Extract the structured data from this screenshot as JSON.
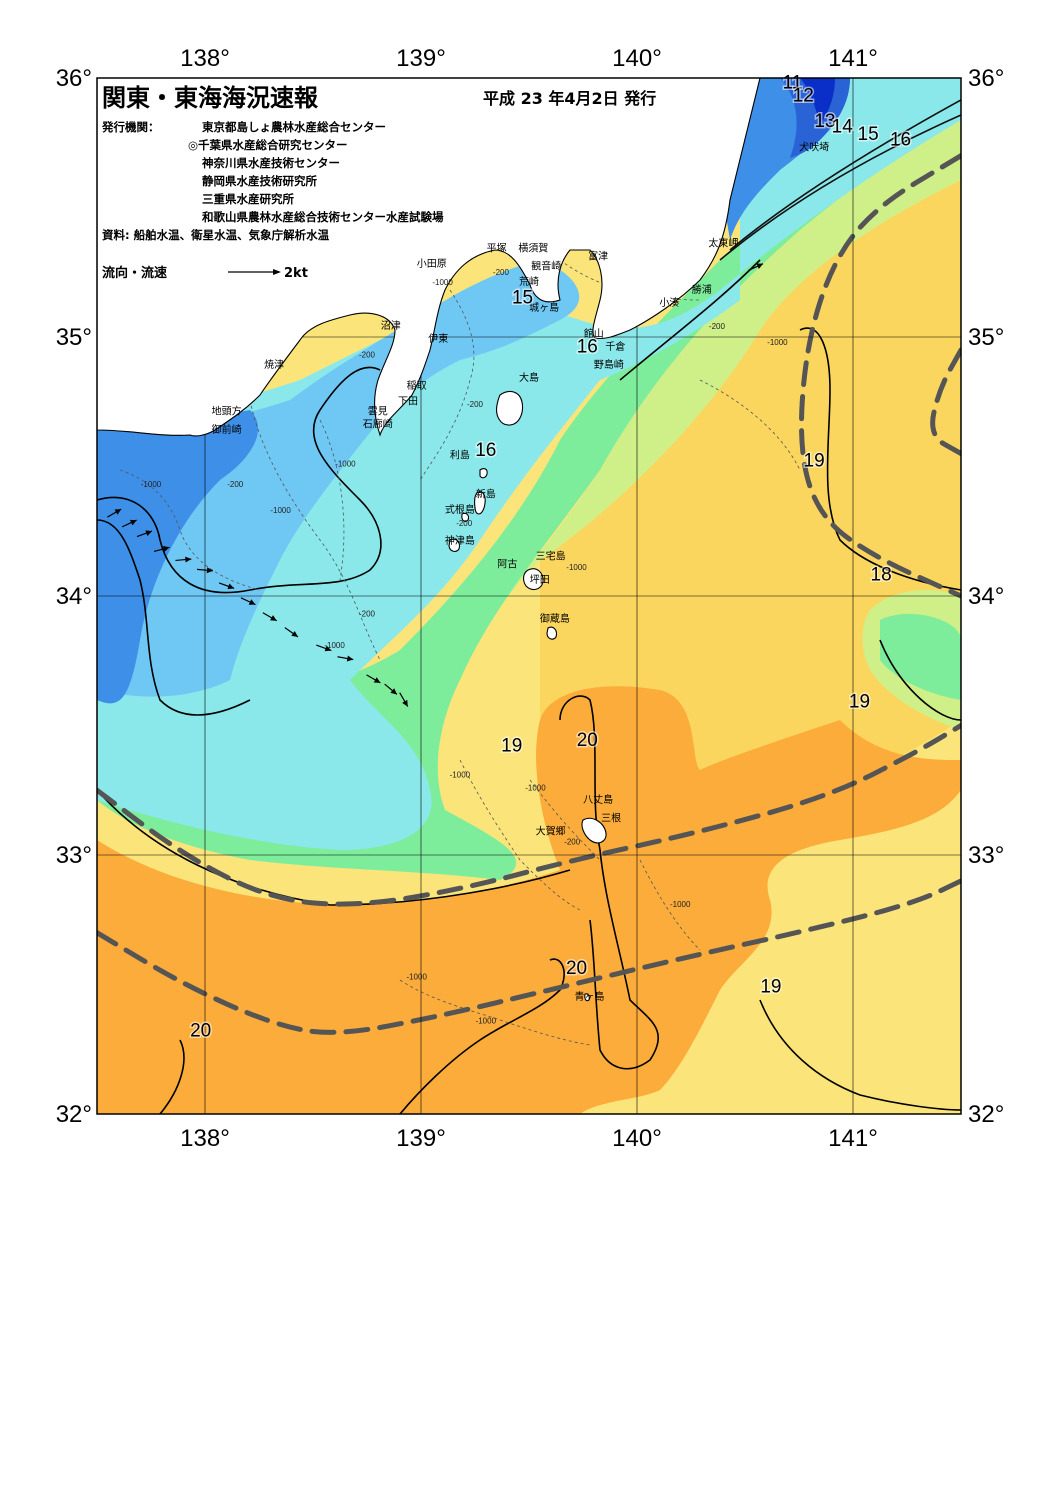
{
  "header": {
    "title": "関東・東海海況速報",
    "issued": "平成 23 年4月2日 発行"
  },
  "organizations": {
    "label": "発行機関：",
    "items": [
      "東京都島しょ農林水産総合センター",
      "◎千葉県水産総合研究センター",
      "神奈川県水産技術センター",
      "静岡県水産技術研究所",
      "三重県水産研究所",
      "和歌山県農林水産総合技術センター水産試験場"
    ]
  },
  "source": "資料: 船舶水温、衛星水温、気象庁解析水温",
  "current_legend": {
    "label": "流向・流速",
    "scale": "2kt"
  },
  "axes": {
    "lon_labels": [
      "138°",
      "139°",
      "140°",
      "141°"
    ],
    "lat_labels": [
      "36°",
      "35°",
      "34°",
      "33°",
      "32°"
    ],
    "lon_range": [
      137.5,
      141.5
    ],
    "lat_range": [
      32,
      36
    ]
  },
  "colors": {
    "sea_14": "#3e8fe8",
    "sea_15": "#6fc8f4",
    "sea_16": "#8ae8ea",
    "sea_17": "#7ded9c",
    "sea_18": "#cfef88",
    "sea_19a": "#fbe57a",
    "sea_19b": "#fbd65e",
    "sea_20": "#fbac3a",
    "land": "#ffffff",
    "kuroshio_axis": "#555555"
  },
  "places": [
    {
      "name": "小田原",
      "lon": 139.05,
      "lat": 35.27
    },
    {
      "name": "平塚",
      "lon": 139.35,
      "lat": 35.33
    },
    {
      "name": "横須賀",
      "lon": 139.52,
      "lat": 35.33
    },
    {
      "name": "観音崎",
      "lon": 139.58,
      "lat": 35.26
    },
    {
      "name": "荒崎",
      "lon": 139.5,
      "lat": 35.2
    },
    {
      "name": "城ヶ島",
      "lon": 139.57,
      "lat": 35.1
    },
    {
      "name": "富津",
      "lon": 139.82,
      "lat": 35.3
    },
    {
      "name": "太東岬",
      "lon": 140.4,
      "lat": 35.35
    },
    {
      "name": "勝浦",
      "lon": 140.3,
      "lat": 35.17
    },
    {
      "name": "小湊",
      "lon": 140.15,
      "lat": 35.12
    },
    {
      "name": "館山",
      "lon": 139.8,
      "lat": 35.0
    },
    {
      "name": "千倉",
      "lon": 139.9,
      "lat": 34.95
    },
    {
      "name": "野島崎",
      "lon": 139.87,
      "lat": 34.88
    },
    {
      "name": "犬吠埼",
      "lon": 140.82,
      "lat": 35.72
    },
    {
      "name": "沼津",
      "lon": 138.86,
      "lat": 35.03
    },
    {
      "name": "焼津",
      "lon": 138.32,
      "lat": 34.88
    },
    {
      "name": "伊東",
      "lon": 139.08,
      "lat": 34.98
    },
    {
      "name": "稲取",
      "lon": 138.98,
      "lat": 34.8
    },
    {
      "name": "下田",
      "lon": 138.94,
      "lat": 34.74
    },
    {
      "name": "雲見",
      "lon": 138.8,
      "lat": 34.7
    },
    {
      "name": "石廊崎",
      "lon": 138.8,
      "lat": 34.65
    },
    {
      "name": "地頭方",
      "lon": 138.1,
      "lat": 34.7
    },
    {
      "name": "御前崎",
      "lon": 138.1,
      "lat": 34.63
    },
    {
      "name": "大島",
      "lon": 139.5,
      "lat": 34.83
    },
    {
      "name": "利島",
      "lon": 139.18,
      "lat": 34.53
    },
    {
      "name": "新島",
      "lon": 139.3,
      "lat": 34.38
    },
    {
      "name": "式根島",
      "lon": 139.18,
      "lat": 34.32
    },
    {
      "name": "神津島",
      "lon": 139.18,
      "lat": 34.2
    },
    {
      "name": "三宅島",
      "lon": 139.6,
      "lat": 34.14
    },
    {
      "name": "阿古",
      "lon": 139.4,
      "lat": 34.11
    },
    {
      "name": "坪田",
      "lon": 139.55,
      "lat": 34.05
    },
    {
      "name": "御蔵島",
      "lon": 139.62,
      "lat": 33.9
    },
    {
      "name": "八丈島",
      "lon": 139.82,
      "lat": 33.2
    },
    {
      "name": "三根",
      "lon": 139.88,
      "lat": 33.13
    },
    {
      "name": "大賀郷",
      "lon": 139.6,
      "lat": 33.08
    },
    {
      "name": "青ヶ島",
      "lon": 139.78,
      "lat": 32.44
    }
  ],
  "isotherm_labels": [
    {
      "text": "11",
      "lon": 140.72,
      "lat": 35.96
    },
    {
      "text": "12",
      "lon": 140.77,
      "lat": 35.91
    },
    {
      "text": "13",
      "lon": 140.87,
      "lat": 35.81
    },
    {
      "text": "14",
      "lon": 140.95,
      "lat": 35.79
    },
    {
      "text": "15",
      "lon": 141.07,
      "lat": 35.76
    },
    {
      "text": "16",
      "lon": 141.22,
      "lat": 35.74
    },
    {
      "text": "15",
      "lon": 139.47,
      "lat": 35.13
    },
    {
      "text": "16",
      "lon": 139.77,
      "lat": 34.94
    },
    {
      "text": "16",
      "lon": 139.3,
      "lat": 34.54
    },
    {
      "text": "19",
      "lon": 140.82,
      "lat": 34.5
    },
    {
      "text": "18",
      "lon": 141.13,
      "lat": 34.06
    },
    {
      "text": "19",
      "lon": 141.03,
      "lat": 33.57
    },
    {
      "text": "19",
      "lon": 139.42,
      "lat": 33.4
    },
    {
      "text": "20",
      "lon": 139.77,
      "lat": 33.42
    },
    {
      "text": "20",
      "lon": 139.72,
      "lat": 32.54
    },
    {
      "text": "19",
      "lon": 140.62,
      "lat": 32.47
    },
    {
      "text": "20",
      "lon": 137.98,
      "lat": 32.3
    }
  ],
  "depth_labels": [
    {
      "text": "-200",
      "lon": 139.37,
      "lat": 35.24
    },
    {
      "text": "-1000",
      "lon": 139.1,
      "lat": 35.2
    },
    {
      "text": "-200",
      "lon": 140.37,
      "lat": 35.03
    },
    {
      "text": "-1000",
      "lon": 140.65,
      "lat": 34.97
    },
    {
      "text": "-200",
      "lon": 138.75,
      "lat": 34.92
    },
    {
      "text": "-200",
      "lon": 139.25,
      "lat": 34.73
    },
    {
      "text": "-1000",
      "lon": 138.65,
      "lat": 34.5
    },
    {
      "text": "-200",
      "lon": 138.14,
      "lat": 34.42
    },
    {
      "text": "-1000",
      "lon": 137.75,
      "lat": 34.42
    },
    {
      "text": "-1000",
      "lon": 138.35,
      "lat": 34.32
    },
    {
      "text": "-200",
      "lon": 139.2,
      "lat": 34.27
    },
    {
      "text": "-1000",
      "lon": 139.72,
      "lat": 34.1
    },
    {
      "text": "-200",
      "lon": 138.75,
      "lat": 33.92
    },
    {
      "text": "-1000",
      "lon": 138.6,
      "lat": 33.8
    },
    {
      "text": "-1000",
      "lon": 139.18,
      "lat": 33.3
    },
    {
      "text": "-1000",
      "lon": 139.53,
      "lat": 33.25
    },
    {
      "text": "-200",
      "lon": 139.7,
      "lat": 33.04
    },
    {
      "text": "-1000",
      "lon": 140.2,
      "lat": 32.8
    },
    {
      "text": "-1000",
      "lon": 138.98,
      "lat": 32.52
    },
    {
      "text": "-1000",
      "lon": 139.3,
      "lat": 32.35
    }
  ],
  "current_arrows": [
    {
      "lon": 137.58,
      "lat": 34.32,
      "dir": 60
    },
    {
      "lon": 137.65,
      "lat": 34.28,
      "dir": 65
    },
    {
      "lon": 137.72,
      "lat": 34.24,
      "dir": 70
    },
    {
      "lon": 137.8,
      "lat": 34.18,
      "dir": 75
    },
    {
      "lon": 137.9,
      "lat": 34.14,
      "dir": 85
    },
    {
      "lon": 138.0,
      "lat": 34.1,
      "dir": 95
    },
    {
      "lon": 138.1,
      "lat": 34.04,
      "dir": 110
    },
    {
      "lon": 138.2,
      "lat": 33.98,
      "dir": 115
    },
    {
      "lon": 138.3,
      "lat": 33.92,
      "dir": 120
    },
    {
      "lon": 138.4,
      "lat": 33.86,
      "dir": 125
    },
    {
      "lon": 138.55,
      "lat": 33.8,
      "dir": 110
    },
    {
      "lon": 138.65,
      "lat": 33.76,
      "dir": 100
    },
    {
      "lon": 138.78,
      "lat": 33.68,
      "dir": 120
    },
    {
      "lon": 138.86,
      "lat": 33.64,
      "dir": 130
    },
    {
      "lon": 138.92,
      "lat": 33.6,
      "dir": 150
    },
    {
      "lon": 140.55,
      "lat": 35.27,
      "dir": 65
    }
  ],
  "kuroshio_paths": [
    [
      [
        137.5,
        33.25
      ],
      [
        137.9,
        33.0
      ],
      [
        138.3,
        32.83
      ],
      [
        138.7,
        32.8
      ],
      [
        139.2,
        32.87
      ],
      [
        139.7,
        32.98
      ],
      [
        140.3,
        33.09
      ],
      [
        140.9,
        33.23
      ],
      [
        141.3,
        33.4
      ],
      [
        141.5,
        33.5
      ]
    ],
    [
      [
        137.5,
        32.7
      ],
      [
        137.9,
        32.5
      ],
      [
        138.3,
        32.35
      ],
      [
        138.6,
        32.3
      ],
      [
        139.1,
        32.38
      ],
      [
        139.6,
        32.48
      ],
      [
        140.2,
        32.6
      ],
      [
        140.9,
        32.73
      ],
      [
        141.3,
        32.82
      ],
      [
        141.5,
        32.9
      ]
    ],
    [
      [
        141.5,
        35.7
      ],
      [
        141.1,
        35.5
      ],
      [
        140.9,
        35.28
      ],
      [
        140.78,
        34.95
      ],
      [
        140.75,
        34.55
      ],
      [
        140.85,
        34.3
      ],
      [
        141.1,
        34.15
      ],
      [
        141.5,
        34.0
      ]
    ],
    [
      [
        141.5,
        34.95
      ],
      [
        141.4,
        34.8
      ],
      [
        141.35,
        34.62
      ],
      [
        141.5,
        34.55
      ]
    ]
  ]
}
